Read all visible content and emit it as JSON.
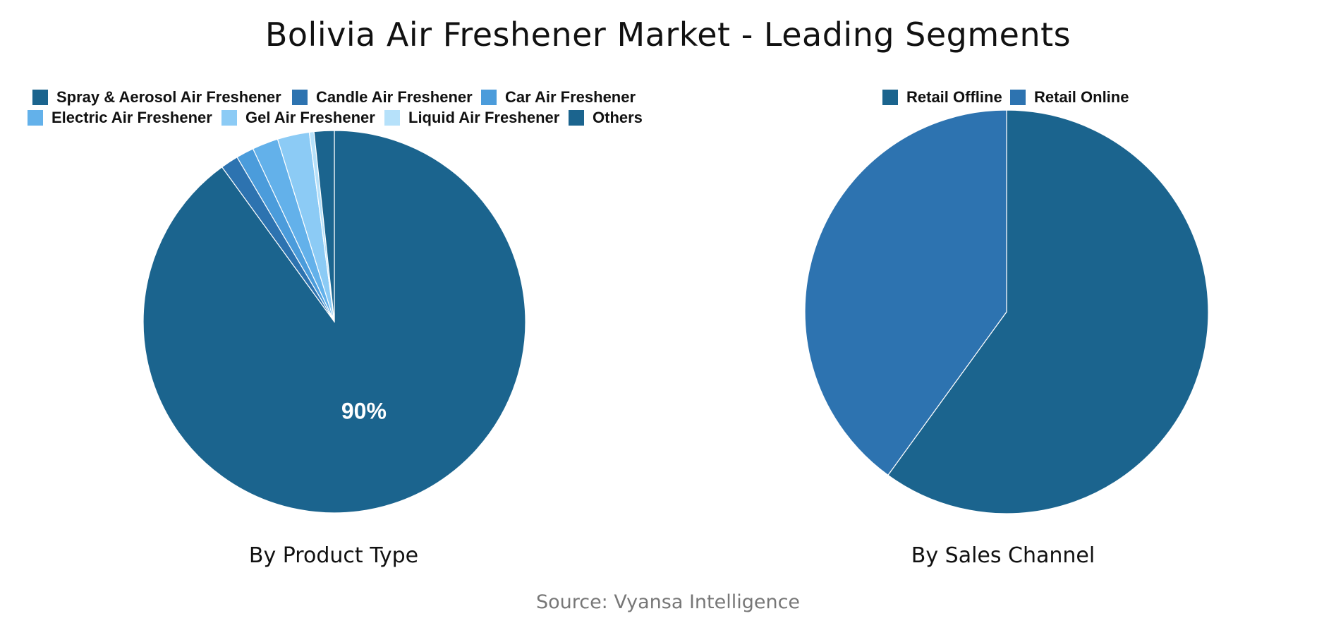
{
  "title": "Bolivia Air Freshener Market - Leading Segments",
  "source": "Source: Vyansa Intelligence",
  "chart_data": [
    {
      "type": "pie",
      "title": "By Product Type",
      "start_angle": "12 o'clock",
      "direction": "clockwise",
      "slices": [
        {
          "label": "Spray & Aerosol Air Freshener",
          "value": 90,
          "color": "#1b648e",
          "data_label": "90%"
        },
        {
          "label": "Candle Air Freshener",
          "value": 1.5,
          "color": "#2d73b0"
        },
        {
          "label": "Car Air Freshener",
          "value": 1.5,
          "color": "#4b9cdb"
        },
        {
          "label": "Electric Air Freshener",
          "value": 2.2,
          "color": "#63b1ea"
        },
        {
          "label": "Gel Air Freshener",
          "value": 2.7,
          "color": "#8ccbf5"
        },
        {
          "label": "Liquid Air Freshener",
          "value": 0.4,
          "color": "#b6e1fa"
        },
        {
          "label": "Others",
          "value": 1.7,
          "color": "#1b648e"
        }
      ]
    },
    {
      "type": "pie",
      "title": "By Sales Channel",
      "start_angle": "12 o'clock",
      "direction": "clockwise",
      "slices": [
        {
          "label": "Retail Offline",
          "value": 60,
          "color": "#1b648e"
        },
        {
          "label": "Retail Online",
          "value": 40,
          "color": "#2d73b0"
        }
      ]
    }
  ]
}
